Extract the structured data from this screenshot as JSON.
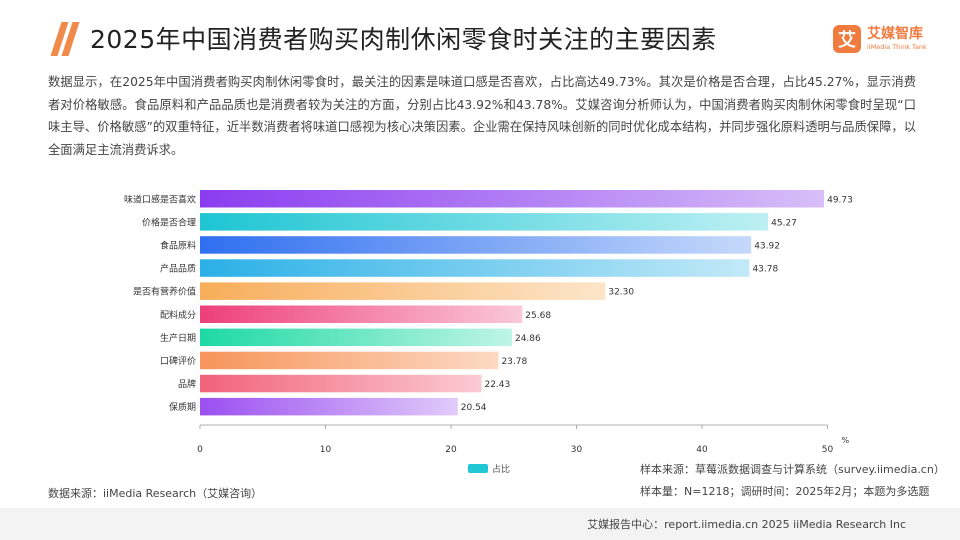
{
  "header": {
    "title": "2025年中国消费者购买肉制休闲零食时关注的主要因素",
    "logo_cn": "艾媒智库",
    "logo_en": "iiMedia Think Tank",
    "logo_mark": "艾"
  },
  "description": "数据显示，在2025年中国消费者购买肉制休闲零食时，最关注的因素是味道口感是否喜欢，占比高达49.73%。其次是价格是否合理，占比45.27%，显示消费者对价格敏感。食品原料和产品品质也是消费者较为关注的方面，分别占比43.92%和43.78%。艾媒咨询分析师认为，中国消费者购买肉制休闲零食时呈现“口味主导、价格敏感”的双重特征，近半数消费者将味道口感视为核心决策因素。企业需在保持风味创新的同时优化成本结构，并同步强化原料透明与品质保障，以全面满足主流消费诉求。",
  "chart_data": {
    "type": "bar",
    "orientation": "horizontal",
    "categories": [
      "味道口感是否喜欢",
      "价格是否合理",
      "食品原料",
      "产品品质",
      "是否有营养价值",
      "配料成分",
      "生产日期",
      "口碑评价",
      "品牌",
      "保质期"
    ],
    "series": [
      {
        "name": "占比",
        "values": [
          49.73,
          45.27,
          43.92,
          43.78,
          32.3,
          25.68,
          24.86,
          23.78,
          22.43,
          20.54
        ]
      }
    ],
    "value_labels": [
      "49.73",
      "45.27",
      "43.92",
      "43.78",
      "32.30",
      "25.68",
      "24.86",
      "23.78",
      "22.43",
      "20.54"
    ],
    "x_ticks": [
      "0",
      "10",
      "20",
      "30",
      "40",
      "50"
    ],
    "x_unit": "%",
    "xlim": [
      0,
      50
    ],
    "grid": false,
    "legend_position": "bottom-center",
    "bar_colors": [
      [
        "#8a3cf0",
        "#d8bff8"
      ],
      [
        "#1ec5d3",
        "#bdf0f3"
      ],
      [
        "#2f6ff0",
        "#c6d9fb"
      ],
      [
        "#2ab0e6",
        "#c3e9f8"
      ],
      [
        "#f7ad5a",
        "#fde5c9"
      ],
      [
        "#ee3f7a",
        "#fbc8da"
      ],
      [
        "#1ed9a5",
        "#bff5e5"
      ],
      [
        "#f6955a",
        "#fdd9c3"
      ],
      [
        "#f2627a",
        "#fbcbd3"
      ],
      [
        "#9b4ff0",
        "#e1cbfb"
      ]
    ]
  },
  "legend": {
    "label": "占比",
    "color": "#22c7d6"
  },
  "source": "数据来源：iiMedia Research（艾媒咨询）",
  "sample": {
    "line1": "样本来源：草莓派数据调查与计算系统（survey.iimedia.cn）",
    "line2": "样本量：N=1218；调研时间：2025年2月；本题为多选题"
  },
  "footer": "艾媒报告中心：report.iimedia.cn  2025 iiMedia Research Inc"
}
